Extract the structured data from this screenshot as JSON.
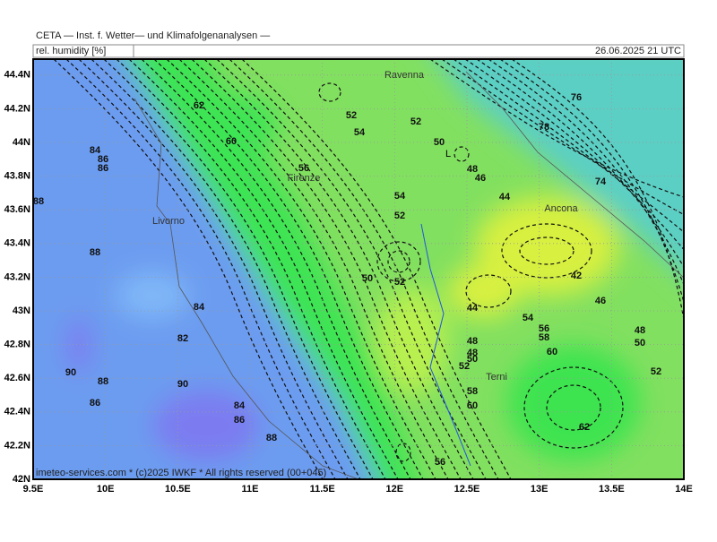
{
  "header": {
    "institute": "CETA — Inst. f. Wetter— und Klimafolgenanalysen —",
    "parameter": "rel. humidity [%]",
    "valid_time": "26.06.2025 21 UTC"
  },
  "axes": {
    "lat_labels": [
      "42N",
      "42.2N",
      "42.4N",
      "42.6N",
      "42.8N",
      "43N",
      "43.2N",
      "43.4N",
      "43.6N",
      "43.8N",
      "44N",
      "44.2N",
      "44.4N"
    ],
    "lon_labels": [
      "9.5E",
      "10E",
      "10.5E",
      "11E",
      "11.5E",
      "12E",
      "12.5E",
      "13E",
      "13.5E",
      "14E"
    ]
  },
  "cities": [
    "Ravenna",
    "Firenze",
    "Livorno",
    "Ancona",
    "Terni"
  ],
  "low_marker": "L",
  "contour_labels": [
    62,
    60,
    52,
    54,
    52,
    50,
    56,
    48,
    46,
    44,
    54,
    52,
    76,
    78,
    74,
    84,
    86,
    86,
    88,
    88,
    84,
    82,
    90,
    88,
    90,
    86,
    84,
    86,
    88,
    50,
    52,
    42,
    46,
    44,
    54,
    56,
    58,
    48,
    50,
    48,
    48,
    50,
    52,
    60,
    52,
    58,
    60,
    62,
    56
  ],
  "footer": "imeteo-services.com * (c)2025 IWKF * All rights reserved (00+045)"
}
